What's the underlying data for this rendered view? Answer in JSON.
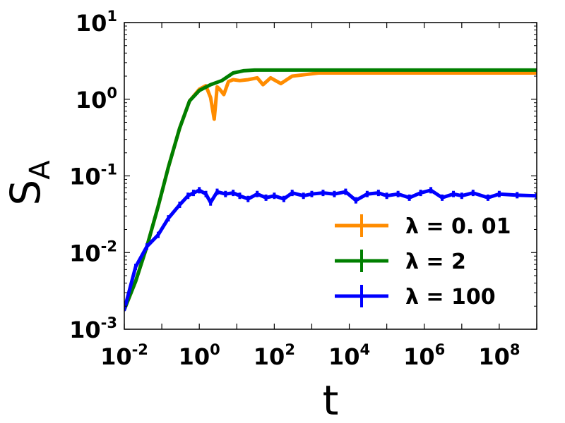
{
  "chart_data": {
    "type": "line",
    "xlabel": "t",
    "ylabel_main": "S",
    "ylabel_sub": "A",
    "x_scale": "log",
    "y_scale": "log",
    "xlim": [
      0.01,
      1000000000
    ],
    "ylim": [
      0.001,
      10
    ],
    "grid": false,
    "legend_position": "lower-right",
    "x_ticks": [
      {
        "value": 0.01,
        "base": "10",
        "exp": "-2"
      },
      {
        "value": 1,
        "base": "10",
        "exp": "0"
      },
      {
        "value": 100,
        "base": "10",
        "exp": "2"
      },
      {
        "value": 10000,
        "base": "10",
        "exp": "4"
      },
      {
        "value": 1000000,
        "base": "10",
        "exp": "6"
      },
      {
        "value": 100000000,
        "base": "10",
        "exp": "8"
      }
    ],
    "y_ticks": [
      {
        "value": 0.001,
        "base": "10",
        "exp": "-3"
      },
      {
        "value": 0.01,
        "base": "10",
        "exp": "-2"
      },
      {
        "value": 0.1,
        "base": "10",
        "exp": "-1"
      },
      {
        "value": 1,
        "base": "10",
        "exp": "0"
      },
      {
        "value": 10,
        "base": "10",
        "exp": "1"
      }
    ],
    "series": [
      {
        "name": "λ = 0. 01",
        "color": "#ff8c00",
        "x": [
          0.01,
          0.02,
          0.04,
          0.08,
          0.15,
          0.3,
          0.55,
          1.0,
          1.5,
          2.0,
          2.5,
          3.0,
          3.5,
          4.5,
          6,
          8,
          12,
          20,
          35,
          50,
          80,
          150,
          300,
          700,
          1500,
          5000,
          20000,
          100000,
          1000000,
          10000000,
          100000000,
          1000000000
        ],
        "y": [
          0.0018,
          0.0042,
          0.012,
          0.04,
          0.13,
          0.42,
          0.95,
          1.35,
          1.5,
          1.05,
          0.55,
          1.45,
          1.35,
          1.15,
          1.7,
          1.8,
          1.75,
          1.8,
          1.9,
          1.55,
          1.9,
          1.6,
          2.0,
          2.1,
          2.2,
          2.2,
          2.2,
          2.2,
          2.2,
          2.2,
          2.2,
          2.2
        ]
      },
      {
        "name": "λ = 2",
        "color": "#007f00",
        "x": [
          0.01,
          0.02,
          0.04,
          0.08,
          0.15,
          0.3,
          0.55,
          1.0,
          2.0,
          4.0,
          8,
          15,
          30,
          100,
          1000,
          100000,
          1000000000
        ],
        "y": [
          0.0018,
          0.0042,
          0.012,
          0.04,
          0.13,
          0.42,
          0.95,
          1.3,
          1.55,
          1.75,
          2.2,
          2.35,
          2.4,
          2.4,
          2.4,
          2.4,
          2.4
        ]
      },
      {
        "name": "λ = 100",
        "color": "#0000ff",
        "x": [
          0.01,
          0.02,
          0.04,
          0.08,
          0.15,
          0.3,
          0.5,
          0.7,
          1.0,
          1.5,
          2.0,
          3.0,
          5,
          8,
          12,
          20,
          35,
          60,
          100,
          180,
          300,
          600,
          1000,
          2000,
          4000,
          8000,
          15000,
          30000,
          60000,
          100000,
          200000,
          400000,
          800000,
          1500000,
          3000000,
          6000000,
          10000000,
          20000000,
          50000000,
          100000000,
          300000000,
          1000000000
        ],
        "y": [
          0.0018,
          0.0065,
          0.012,
          0.017,
          0.028,
          0.042,
          0.055,
          0.06,
          0.065,
          0.058,
          0.045,
          0.062,
          0.058,
          0.06,
          0.055,
          0.05,
          0.058,
          0.052,
          0.055,
          0.05,
          0.06,
          0.055,
          0.058,
          0.06,
          0.058,
          0.062,
          0.048,
          0.058,
          0.06,
          0.055,
          0.058,
          0.052,
          0.06,
          0.065,
          0.052,
          0.058,
          0.055,
          0.06,
          0.052,
          0.058,
          0.056,
          0.055
        ],
        "yerr": 0.1
      }
    ]
  }
}
